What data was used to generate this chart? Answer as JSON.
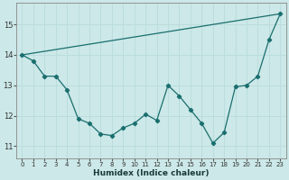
{
  "xlabel": "Humidex (Indice chaleur)",
  "bg_color": "#cce8e8",
  "grid_color": "#bbdddd",
  "line_color": "#1a6e6e",
  "xlim": [
    -0.5,
    23.5
  ],
  "ylim": [
    10.6,
    15.7
  ],
  "xticks": [
    0,
    1,
    2,
    3,
    4,
    5,
    6,
    7,
    8,
    9,
    10,
    11,
    12,
    13,
    14,
    15,
    16,
    17,
    18,
    19,
    20,
    21,
    22,
    23
  ],
  "yticks": [
    11,
    12,
    13,
    14,
    15
  ],
  "line1_x": [
    0,
    1,
    2,
    3,
    4,
    5,
    6,
    7,
    8,
    9,
    10,
    11,
    12,
    13,
    14,
    15,
    16,
    17,
    18,
    19,
    20,
    21,
    22,
    23
  ],
  "line1_y": [
    14.0,
    13.8,
    13.3,
    13.3,
    12.85,
    11.9,
    11.75,
    11.4,
    11.35,
    11.6,
    11.75,
    12.05,
    11.85,
    13.0,
    12.65,
    12.2,
    11.75,
    11.1,
    11.45,
    12.95,
    13.0,
    13.3,
    14.5,
    15.35
  ],
  "line2_x": [
    0,
    23
  ],
  "line2_y": [
    14.0,
    15.35
  ]
}
